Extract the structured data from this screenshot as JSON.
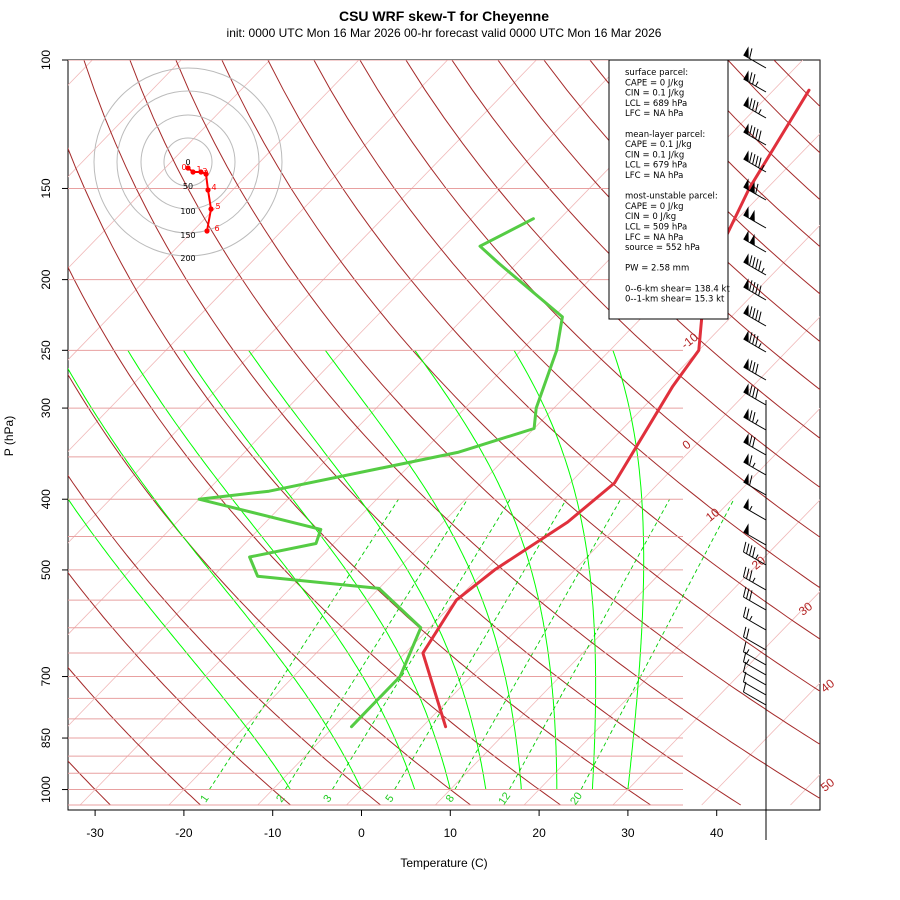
{
  "title": "CSU WRF skew-T for Cheyenne",
  "subtitle": "init: 0000 UTC Mon 16 Mar 2026     00-hr forecast valid 0000 UTC Mon 16 Mar 2026",
  "chart_data": {
    "type": "line",
    "xlabel": "Temperature (C)",
    "ylabel": "P (hPa)",
    "x_ticks": [
      -30,
      -20,
      -10,
      0,
      10,
      20,
      30,
      40
    ],
    "y_ticks": [
      100,
      150,
      200,
      250,
      300,
      400,
      500,
      700,
      850,
      1000
    ],
    "isotherm_labels": [
      "-10",
      "0",
      "10",
      "20",
      "30",
      "40",
      "50"
    ],
    "mixing_ratio_labels": [
      "1",
      "2",
      "3",
      "5",
      "8",
      "12",
      "20"
    ],
    "series": [
      {
        "name": "temperature",
        "color": "#e0303c",
        "points": [
          [
            2.6,
            820
          ],
          [
            -8,
            650
          ],
          [
            -10,
            550
          ],
          [
            -9,
            500
          ],
          [
            -6,
            430
          ],
          [
            -5,
            380
          ],
          [
            -9,
            280
          ],
          [
            -10,
            250
          ],
          [
            -17,
            200
          ],
          [
            -22,
            150
          ],
          [
            -26,
            110
          ]
        ]
      },
      {
        "name": "dewpoint",
        "color": "#55cc44",
        "points": [
          [
            -8,
            820
          ],
          [
            -8,
            780
          ],
          [
            -8,
            700
          ],
          [
            -11,
            600
          ],
          [
            -20,
            530
          ],
          [
            -35,
            510
          ],
          [
            -38,
            480
          ],
          [
            -32,
            460
          ],
          [
            -33,
            440
          ],
          [
            -50,
            400
          ],
          [
            -43,
            390
          ],
          [
            -26,
            345
          ],
          [
            -20,
            320
          ],
          [
            -22,
            300
          ],
          [
            -26,
            250
          ],
          [
            -29,
            225
          ],
          [
            -42,
            190
          ],
          [
            -46,
            180
          ],
          [
            -43,
            165
          ]
        ]
      }
    ]
  },
  "info_box": {
    "lines": [
      "surface parcel:",
      "CAPE = 0 J/kg",
      "CIN = 0.1 J/kg",
      "LCL = 689 hPa",
      "LFC = NA hPa",
      "",
      "mean-layer parcel:",
      "CAPE = 0.1 J/kg",
      "CIN = 0.1 J/kg",
      "LCL = 679 hPa",
      "LFC = NA hPa",
      "",
      "most-unstable parcel:",
      "CAPE = 0 J/kg",
      "CIN = 0 J/kg",
      "LCL = 509 hPa",
      "LFC = NA hPa",
      "source = 552 hPa",
      "",
      "PW =  2.58 mm",
      "",
      "0--6-km shear= 138.4 kt",
      "0--1-km shear= 15.3 kt"
    ]
  },
  "hodograph": {
    "ring_labels": [
      "0",
      "50",
      "100",
      "150",
      "200"
    ],
    "height_labels": [
      "0",
      "1",
      "2",
      "3",
      "4",
      "5",
      "6"
    ]
  },
  "colors": {
    "isotherm": "#8b0000",
    "dry_adiabat": "#a52a2a",
    "moist_adiabat": "#00ff00",
    "mixing_ratio": "#00cc00",
    "temperature": "#e0303c",
    "dewpoint": "#55cc44",
    "hodograph": "#ff0000"
  }
}
